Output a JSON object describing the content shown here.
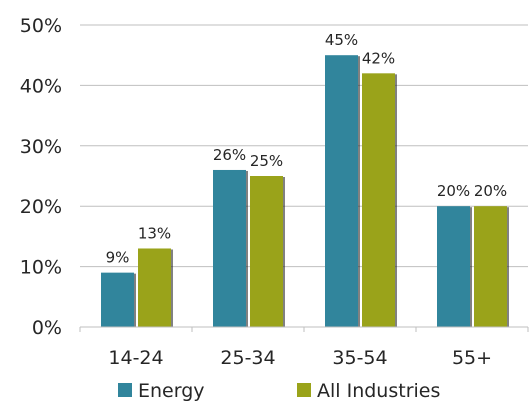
{
  "chart_data": {
    "type": "bar",
    "categories": [
      "14-24",
      "25-34",
      "35-54",
      "55+"
    ],
    "series": [
      {
        "name": "Energy",
        "color": "#31859c",
        "values": [
          9,
          26,
          45,
          20
        ],
        "labels": [
          "9%",
          "26%",
          "45%",
          "20%"
        ]
      },
      {
        "name": "All Industries",
        "color": "#9aa31a",
        "values": [
          13,
          25,
          42,
          20
        ],
        "labels": [
          "13%",
          "25%",
          "42%",
          "20%"
        ]
      }
    ],
    "ylim": [
      0,
      50
    ],
    "yticks": [
      0,
      10,
      20,
      30,
      40,
      50
    ],
    "ytick_labels": [
      "0%",
      "10%",
      "20%",
      "30%",
      "40%",
      "50%"
    ],
    "grid": true,
    "legend_position": "bottom"
  }
}
